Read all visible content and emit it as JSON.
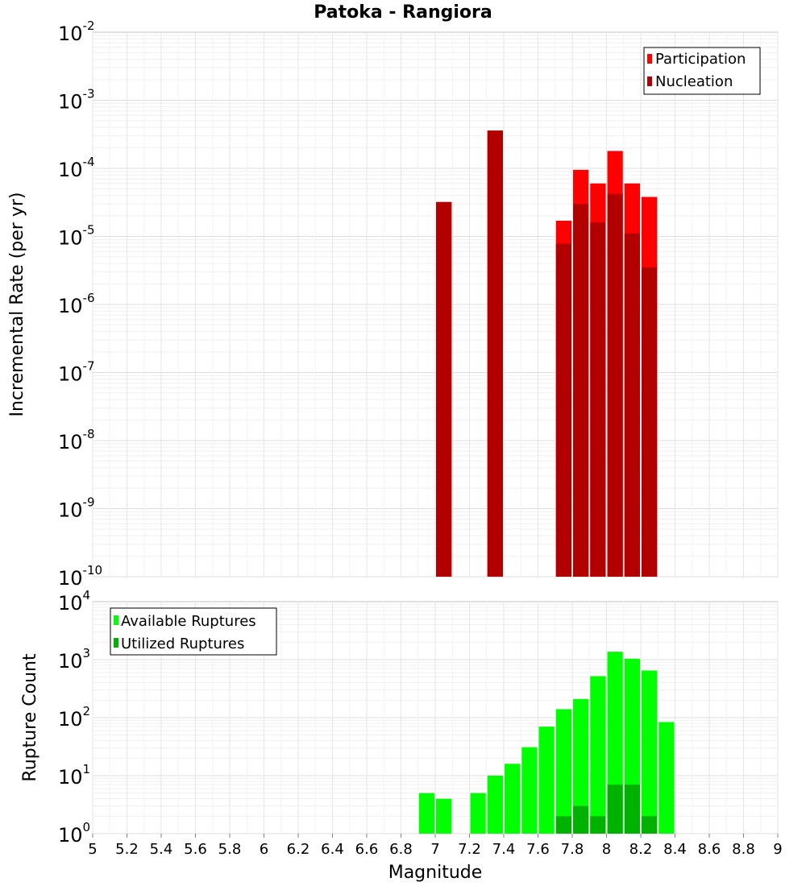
{
  "title": "Patoka - Rangiora",
  "chart_data": [
    {
      "type": "bar",
      "name": "rate-panel",
      "ylabel": "Incremental Rate (per yr)",
      "yscale": "log",
      "ylim_exp": [
        -10,
        -2
      ],
      "xlim": [
        5,
        9
      ],
      "bar_width": 0.1,
      "grid": true,
      "legend_position": "top-right",
      "series": [
        {
          "name": "Participation",
          "color": "#ff0000",
          "points": [
            {
              "x": 7.05,
              "y": 3.2e-05
            },
            {
              "x": 7.35,
              "y": 0.00036
            },
            {
              "x": 7.75,
              "y": 1.7e-05
            },
            {
              "x": 7.85,
              "y": 9.5e-05
            },
            {
              "x": 7.95,
              "y": 6e-05
            },
            {
              "x": 8.05,
              "y": 0.00018
            },
            {
              "x": 8.15,
              "y": 6e-05
            },
            {
              "x": 8.25,
              "y": 3.8e-05
            }
          ]
        },
        {
          "name": "Nucleation",
          "color": "#b20000",
          "points": [
            {
              "x": 7.05,
              "y": 3.2e-05
            },
            {
              "x": 7.35,
              "y": 0.00036
            },
            {
              "x": 7.75,
              "y": 7.8e-06
            },
            {
              "x": 7.85,
              "y": 3e-05
            },
            {
              "x": 7.95,
              "y": 1.6e-05
            },
            {
              "x": 8.05,
              "y": 4.2e-05
            },
            {
              "x": 8.15,
              "y": 1.1e-05
            },
            {
              "x": 8.25,
              "y": 3.5e-06
            }
          ]
        }
      ]
    },
    {
      "type": "bar",
      "name": "count-panel",
      "ylabel": "Rupture Count",
      "xlabel": "Magnitude",
      "yscale": "log",
      "ylim_exp": [
        0,
        4
      ],
      "xlim": [
        5,
        9
      ],
      "bar_width": 0.1,
      "grid": true,
      "legend_position": "top-left",
      "x_ticks": [
        "5",
        "5.2",
        "5.4",
        "5.6",
        "5.8",
        "6",
        "6.2",
        "6.4",
        "6.6",
        "6.8",
        "7",
        "7.2",
        "7.4",
        "7.6",
        "7.8",
        "8",
        "8.2",
        "8.4",
        "8.6",
        "8.8",
        "9"
      ],
      "series": [
        {
          "name": "Available Ruptures",
          "color": "#00ff00",
          "points": [
            {
              "x": 6.95,
              "y": 5
            },
            {
              "x": 7.05,
              "y": 4
            },
            {
              "x": 7.25,
              "y": 5
            },
            {
              "x": 7.35,
              "y": 10
            },
            {
              "x": 7.45,
              "y": 16
            },
            {
              "x": 7.55,
              "y": 31
            },
            {
              "x": 7.65,
              "y": 70
            },
            {
              "x": 7.75,
              "y": 140
            },
            {
              "x": 7.85,
              "y": 210
            },
            {
              "x": 7.95,
              "y": 520
            },
            {
              "x": 8.05,
              "y": 1370
            },
            {
              "x": 8.15,
              "y": 1040
            },
            {
              "x": 8.25,
              "y": 650
            },
            {
              "x": 8.35,
              "y": 84
            }
          ]
        },
        {
          "name": "Utilized Ruptures",
          "color": "#00b200",
          "points": [
            {
              "x": 7.05,
              "y": 1
            },
            {
              "x": 7.35,
              "y": 1
            },
            {
              "x": 7.75,
              "y": 2
            },
            {
              "x": 7.85,
              "y": 3
            },
            {
              "x": 7.95,
              "y": 2
            },
            {
              "x": 8.05,
              "y": 7
            },
            {
              "x": 8.15,
              "y": 7
            },
            {
              "x": 8.25,
              "y": 2
            }
          ]
        }
      ]
    }
  ]
}
